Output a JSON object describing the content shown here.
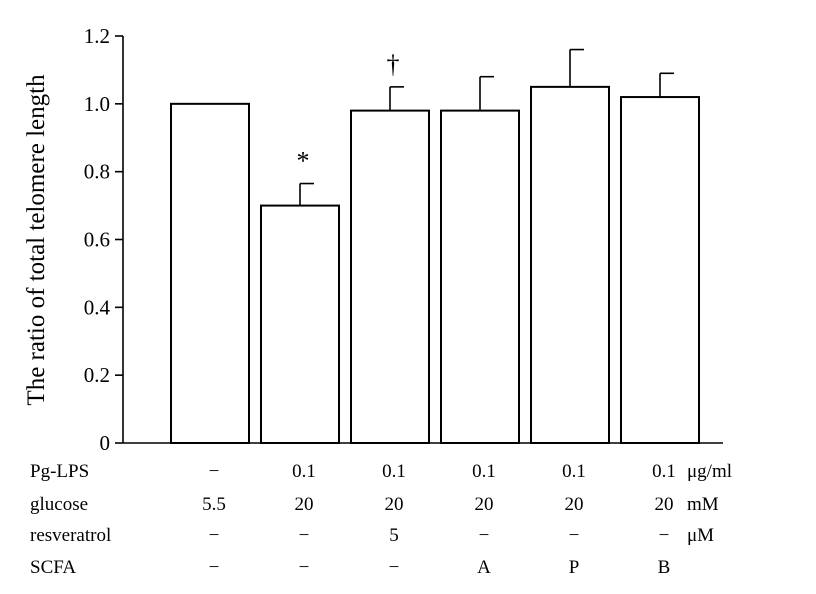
{
  "chart_data": {
    "type": "bar",
    "ylabel": "The ratio of total telomere length",
    "ylim": [
      0,
      1.2
    ],
    "yticks": [
      "0",
      "0.2",
      "0.4",
      "0.6",
      "0.8",
      "1.0",
      "1.2"
    ],
    "bars": [
      {
        "value": 1.0,
        "error": 0.0,
        "mark": ""
      },
      {
        "value": 0.7,
        "error": 0.065,
        "mark": "*"
      },
      {
        "value": 0.98,
        "error": 0.07,
        "mark": "†"
      },
      {
        "value": 0.98,
        "error": 0.1,
        "mark": ""
      },
      {
        "value": 1.05,
        "error": 0.11,
        "mark": ""
      },
      {
        "value": 1.02,
        "error": 0.07,
        "mark": ""
      }
    ],
    "conditions": [
      {
        "label": "Pg-LPS",
        "values": [
          "−",
          "0.1",
          "0.1",
          "0.1",
          "0.1",
          "0.1"
        ],
        "unit": "μg/ml"
      },
      {
        "label": "glucose",
        "values": [
          "5.5",
          "20",
          "20",
          "20",
          "20",
          "20"
        ],
        "unit": "mM"
      },
      {
        "label": "resveratrol",
        "values": [
          "−",
          "−",
          "5",
          "−",
          "−",
          "−"
        ],
        "unit": "μM"
      },
      {
        "label": "SCFA",
        "values": [
          "−",
          "−",
          "−",
          "A",
          "P",
          "B"
        ],
        "unit": ""
      }
    ]
  }
}
